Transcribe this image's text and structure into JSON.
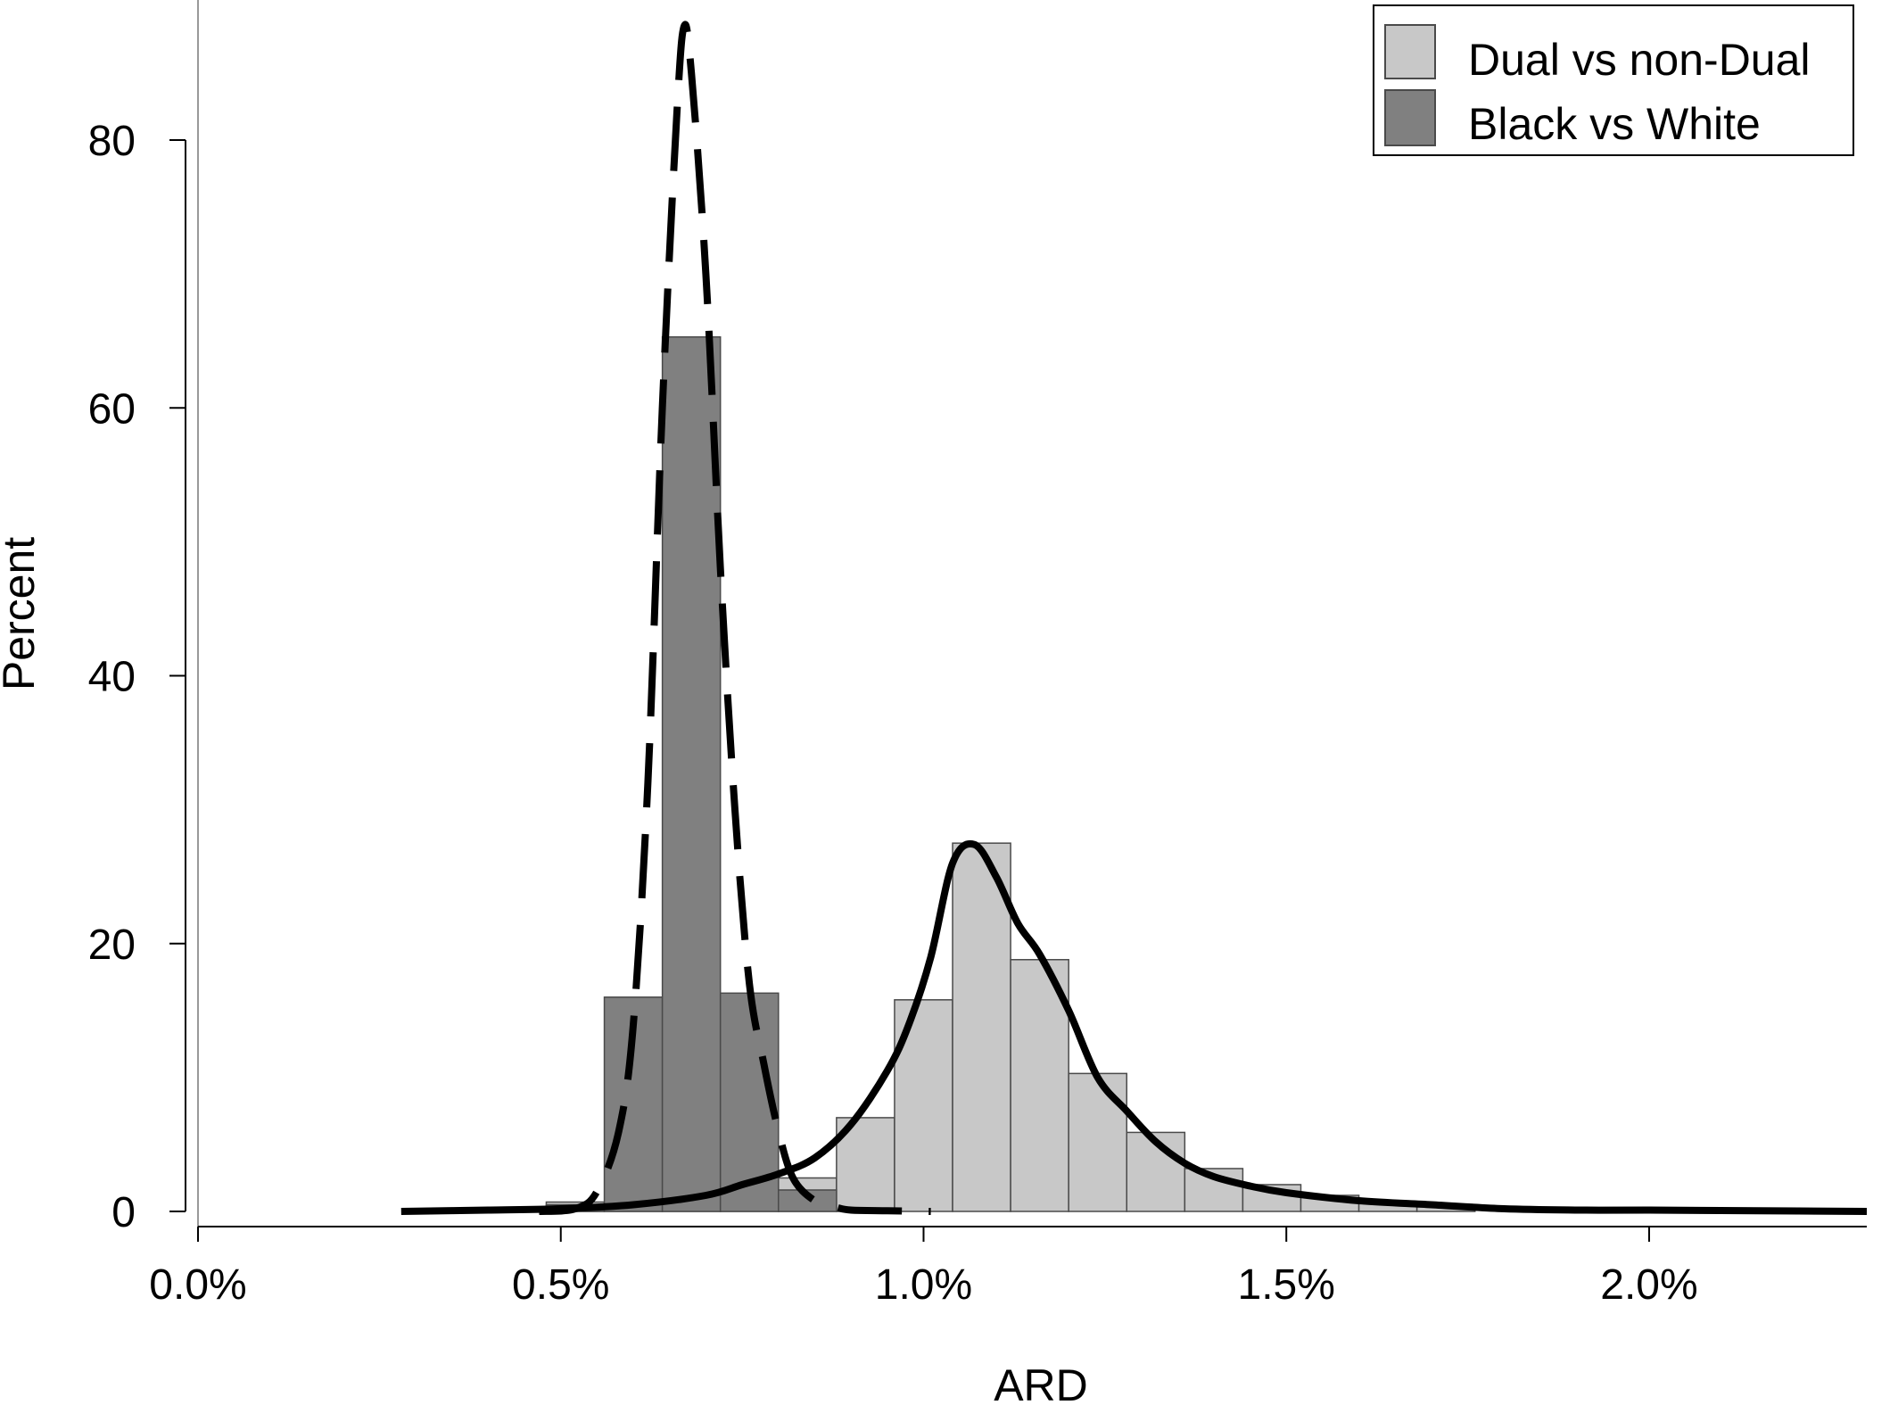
{
  "chart_data": {
    "type": "bar",
    "xlabel": "ARD",
    "ylabel": "Percent",
    "xlim": [
      0.0,
      0.023
    ],
    "ylim": [
      0,
      90
    ],
    "x_ticks": [
      0.0,
      0.005,
      0.01,
      0.015,
      0.02
    ],
    "x_tick_labels": [
      "0.0%",
      "0.5%",
      "1.0%",
      "1.5%",
      "2.0%"
    ],
    "y_ticks": [
      0,
      20,
      40,
      60,
      80
    ],
    "y_tick_labels": [
      "0",
      "20",
      "40",
      "60",
      "80"
    ],
    "grid": false,
    "legend_position": "top-right",
    "colors": {
      "dual_fill": "#c8c8c8",
      "black_fill": "#808080",
      "bar_stroke": "#4a4a4a",
      "curve": "#000000"
    },
    "series": [
      {
        "name": "Dual vs non-Dual",
        "style": "histogram",
        "bin_width": 0.0008,
        "bins": [
          {
            "x0": 0.0048,
            "value": 0.7
          },
          {
            "x0": 0.0056,
            "value": 0.3
          },
          {
            "x0": 0.0064,
            "value": 1.0
          },
          {
            "x0": 0.0072,
            "value": 2.0
          },
          {
            "x0": 0.008,
            "value": 2.5
          },
          {
            "x0": 0.0088,
            "value": 7.0
          },
          {
            "x0": 0.0096,
            "value": 15.8
          },
          {
            "x0": 0.0104,
            "value": 27.5
          },
          {
            "x0": 0.0112,
            "value": 18.8
          },
          {
            "x0": 0.012,
            "value": 10.3
          },
          {
            "x0": 0.0128,
            "value": 5.9
          },
          {
            "x0": 0.0136,
            "value": 3.2
          },
          {
            "x0": 0.0144,
            "value": 2.0
          },
          {
            "x0": 0.0152,
            "value": 1.2
          },
          {
            "x0": 0.016,
            "value": 0.6
          },
          {
            "x0": 0.0168,
            "value": 0.4
          }
        ],
        "density_curve": {
          "line_style": "solid",
          "x": [
            0.0028,
            0.004,
            0.005,
            0.006,
            0.007,
            0.0075,
            0.008,
            0.0085,
            0.009,
            0.0095,
            0.0098,
            0.0101,
            0.0104,
            0.0107,
            0.011,
            0.0113,
            0.0116,
            0.012,
            0.0124,
            0.0128,
            0.0132,
            0.0136,
            0.014,
            0.0145,
            0.015,
            0.016,
            0.017,
            0.018,
            0.019,
            0.02,
            0.0215,
            0.023
          ],
          "y": [
            0,
            0.1,
            0.2,
            0.5,
            1.2,
            2.0,
            2.8,
            4.0,
            6.5,
            10.5,
            14.0,
            19.0,
            26.0,
            27.4,
            25.0,
            21.5,
            19.2,
            15.0,
            10.0,
            7.5,
            5.2,
            3.6,
            2.6,
            1.9,
            1.4,
            0.8,
            0.5,
            0.2,
            0.1,
            0.1,
            0.05,
            0.0
          ]
        }
      },
      {
        "name": "Black vs White",
        "style": "histogram",
        "bin_width": 0.0008,
        "bins": [
          {
            "x0": 0.0048,
            "value": 0.5
          },
          {
            "x0": 0.0056,
            "value": 16.0
          },
          {
            "x0": 0.0064,
            "value": 65.3
          },
          {
            "x0": 0.0072,
            "value": 16.3
          },
          {
            "x0": 0.008,
            "value": 1.6
          },
          {
            "x0": 0.0088,
            "value": 0.0
          }
        ],
        "density_curve": {
          "line_style": "dashed",
          "x": [
            0.0047,
            0.0052,
            0.0055,
            0.0058,
            0.006,
            0.0062,
            0.0064,
            0.0066,
            0.0067,
            0.0068,
            0.007,
            0.0072,
            0.0074,
            0.0076,
            0.0078,
            0.008,
            0.0082,
            0.0085,
            0.0088,
            0.009,
            0.0095,
            0.0101
          ],
          "y": [
            0,
            0.2,
            1.5,
            6.0,
            14.0,
            32.0,
            60.0,
            82.0,
            88.5,
            85.0,
            70.0,
            48.0,
            30.0,
            17.0,
            11.0,
            6.0,
            2.5,
            0.8,
            0.3,
            0.1,
            0.05,
            0.0
          ]
        }
      }
    ]
  }
}
